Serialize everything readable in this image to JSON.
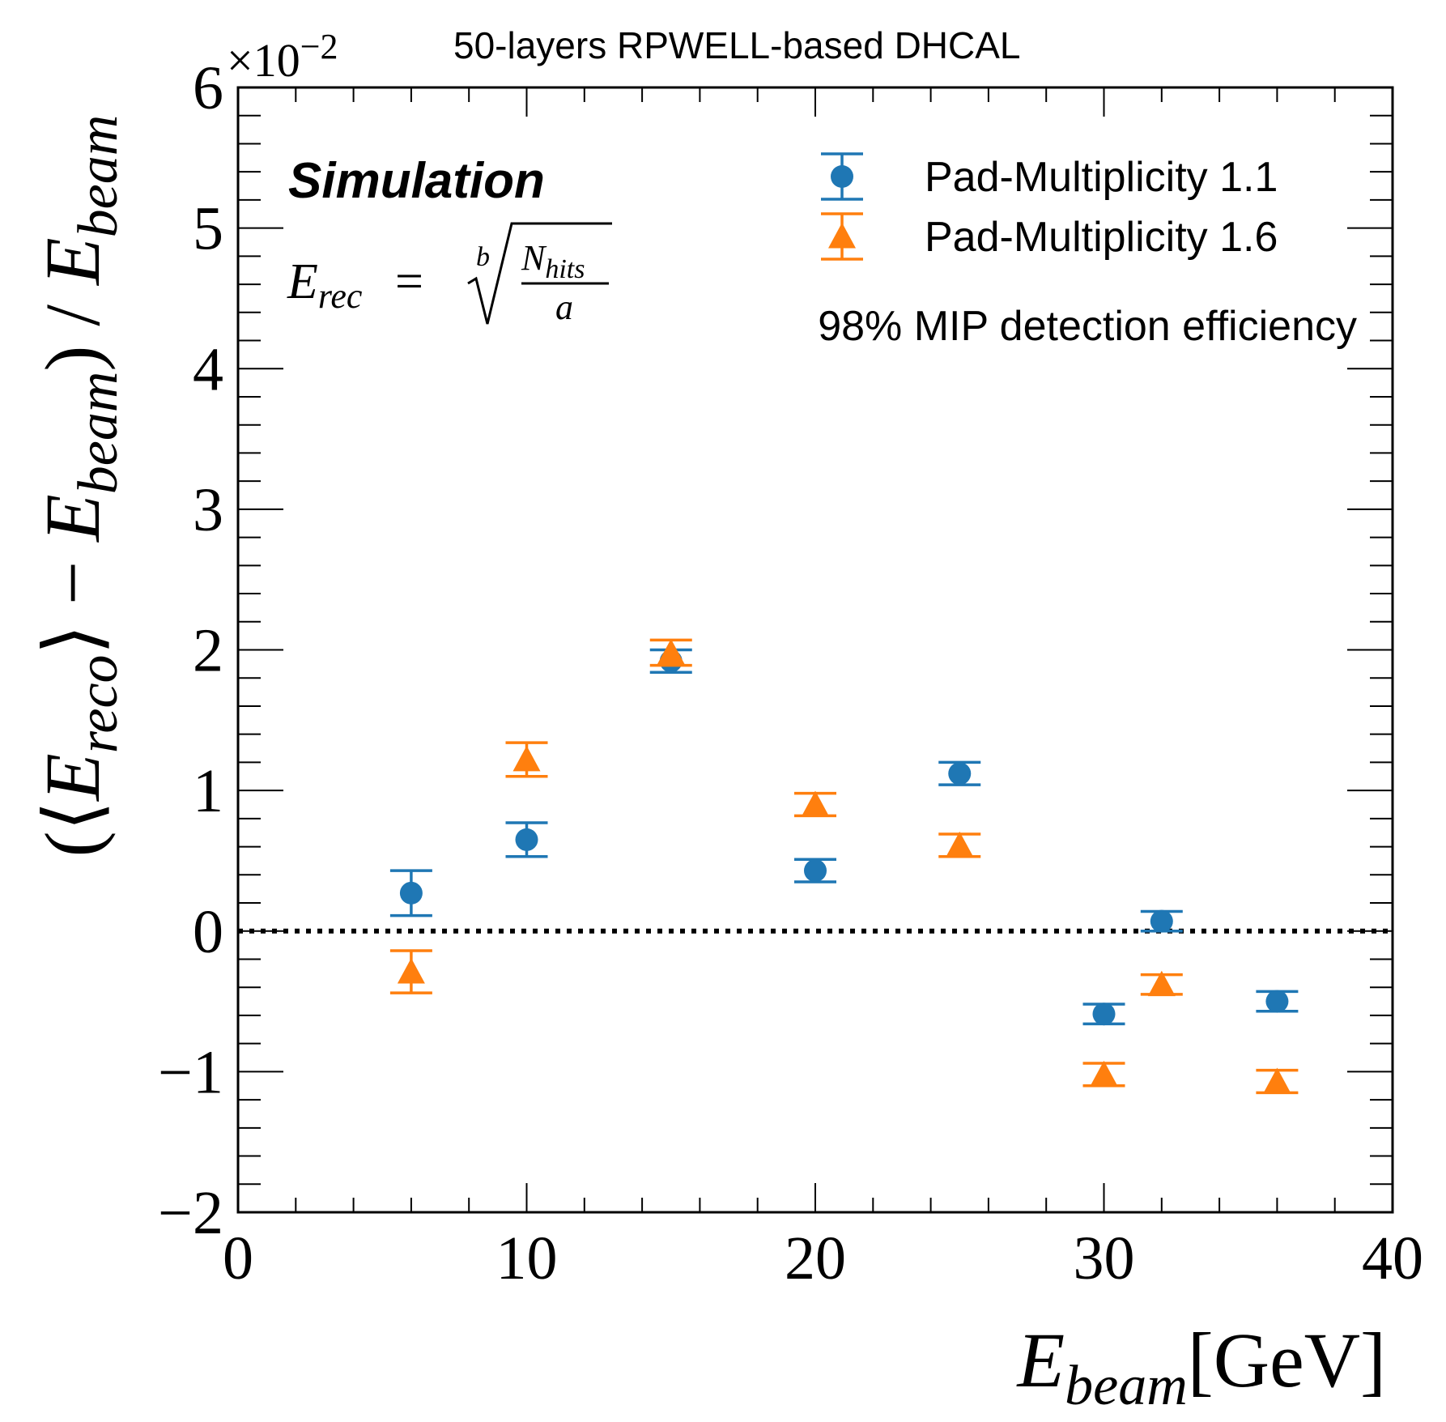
{
  "chart_data": {
    "type": "scatter",
    "title": "50-layers RPWELL-based DHCAL",
    "scale_label": {
      "base": "×10",
      "exponent": "−2"
    },
    "xlabel": {
      "main": "E",
      "sub": "beam",
      "unit": "[GeV]"
    },
    "ylabel": {
      "open": "(⟨",
      "e1": "E",
      "s1": "reco",
      "mid": "⟩ − ",
      "e2": "E",
      "s2": "beam",
      "close": ") / ",
      "e3": "E",
      "s3": "beam"
    },
    "xlim": [
      0,
      40
    ],
    "ylim": [
      -2,
      6
    ],
    "xticks": [
      0,
      10,
      20,
      30,
      40
    ],
    "yticks": [
      -2,
      -1,
      0,
      1,
      2,
      3,
      4,
      5,
      6
    ],
    "tick_labels_x": [
      "0",
      "10",
      "20",
      "30",
      "40"
    ],
    "tick_labels_y": [
      "−2",
      "−1",
      "0",
      "1",
      "2",
      "3",
      "4",
      "5",
      "6"
    ],
    "annotations": {
      "simulation": "Simulation",
      "formula": {
        "lhs": "E",
        "lhs_sub": "rec",
        "eq": "=",
        "root_index": "b",
        "numerator": "N",
        "numerator_sub": "hits",
        "denominator": "a"
      },
      "efficiency": "98% MIP detection efficiency"
    },
    "reference_line": {
      "y": 0,
      "style": "dotted"
    },
    "legend_position": "top-right",
    "series": [
      {
        "name": "Pad-Multiplicity 1.1",
        "marker": "circle",
        "color": "#1f77b4",
        "x": [
          6,
          10,
          15,
          20,
          25,
          30,
          32,
          36
        ],
        "y": [
          0.27,
          0.65,
          1.92,
          0.43,
          1.12,
          -0.59,
          0.07,
          -0.5
        ],
        "err": [
          0.16,
          0.12,
          0.08,
          0.08,
          0.08,
          0.07,
          0.07,
          0.07
        ]
      },
      {
        "name": "Pad-Multiplicity 1.6",
        "marker": "triangle",
        "color": "#ff7f0e",
        "x": [
          6,
          10,
          15,
          20,
          25,
          30,
          32,
          36
        ],
        "y": [
          -0.29,
          1.22,
          1.98,
          0.9,
          0.61,
          -1.02,
          -0.38,
          -1.07
        ],
        "err": [
          0.15,
          0.12,
          0.09,
          0.08,
          0.08,
          0.08,
          0.07,
          0.08
        ]
      }
    ]
  }
}
